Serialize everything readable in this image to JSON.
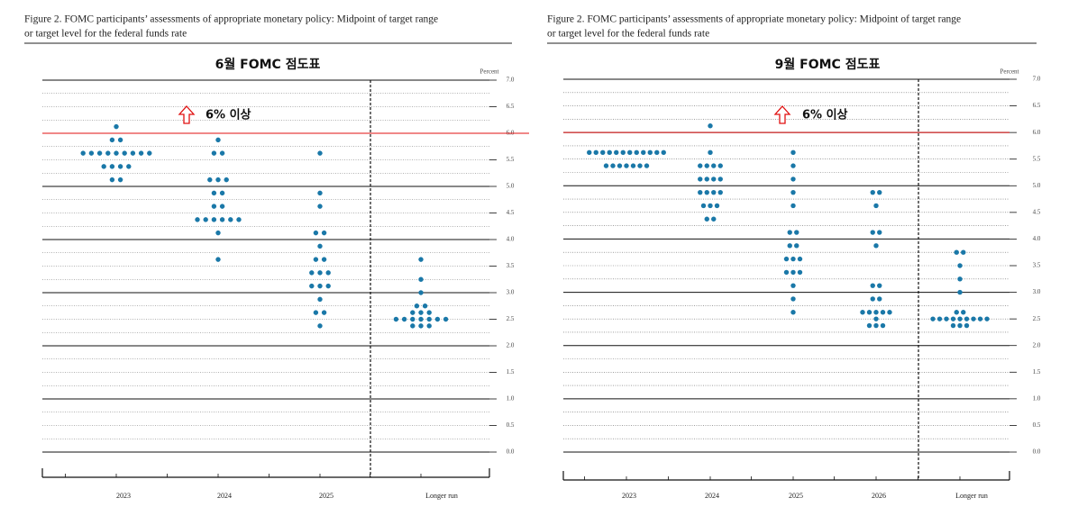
{
  "chart_data": [
    {
      "type": "dot",
      "caption": [
        "Figure 2.  FOMC participants’ assessments of appropriate monetary policy:  Midpoint of target range",
        "or target level for the federal funds rate"
      ],
      "title": "6월 FOMC 점도표",
      "ylabel": "Percent",
      "annotation": "6% 이상",
      "threshold": 6.0,
      "threshold_color": "#e01010",
      "color": "#1a78a8",
      "categories": [
        "2023",
        "2024",
        "2025",
        "Longer run"
      ],
      "dots": [
        [
          6.125,
          5.875,
          5.875,
          5.625,
          5.625,
          5.625,
          5.625,
          5.625,
          5.625,
          5.625,
          5.625,
          5.625,
          5.375,
          5.375,
          5.375,
          5.375,
          5.125,
          5.125
        ],
        [
          5.875,
          5.625,
          5.625,
          5.125,
          5.125,
          5.125,
          4.875,
          4.875,
          4.625,
          4.625,
          4.375,
          4.375,
          4.375,
          4.375,
          4.375,
          4.375,
          4.125,
          3.625
        ],
        [
          5.625,
          4.875,
          4.625,
          4.125,
          4.125,
          3.875,
          3.625,
          3.625,
          3.375,
          3.375,
          3.375,
          3.125,
          3.125,
          3.125,
          2.875,
          2.625,
          2.625,
          2.375
        ],
        [
          3.625,
          3.25,
          3.0,
          2.75,
          2.75,
          2.625,
          2.625,
          2.625,
          2.5,
          2.5,
          2.5,
          2.5,
          2.5,
          2.5,
          2.5,
          2.375,
          2.375,
          2.375
        ]
      ],
      "ylim": [
        0,
        7
      ],
      "yticks": [
        {
          "value": 0,
          "label": "0.0"
        },
        0.5,
        {
          "value": 1,
          "label": "1.0"
        },
        1.5,
        {
          "value": 2,
          "label": "2.0"
        },
        2.5,
        {
          "value": 3,
          "label": "3.0"
        },
        3.5,
        {
          "value": 4,
          "label": "4.0"
        },
        4.5,
        {
          "value": 5,
          "label": "5.0"
        },
        5.5,
        {
          "value": 6,
          "label": "6.0"
        },
        6.5,
        {
          "value": 7,
          "label": "7.0"
        }
      ],
      "minor_yticks": [
        0.25,
        0.75,
        1.25,
        1.75,
        2.25,
        2.75,
        3.25,
        3.75,
        4.25,
        4.75,
        5.25,
        5.75,
        6.25,
        6.75
      ]
    },
    {
      "type": "dot",
      "caption": [
        "Figure 2.  FOMC participants’ assessments of appropriate monetary policy:  Midpoint of target range",
        "or target level for the federal funds rate"
      ],
      "title": "9월 FOMC 점도표",
      "ylabel": "Percent",
      "annotation": "6% 이상",
      "threshold": 6.0,
      "threshold_color": "#e01010",
      "color": "#1a78a8",
      "categories": [
        "2023",
        "2024",
        "2025",
        "2026",
        "Longer run"
      ],
      "dots": [
        [
          5.625,
          5.625,
          5.625,
          5.625,
          5.625,
          5.625,
          5.625,
          5.625,
          5.625,
          5.625,
          5.625,
          5.625,
          5.375,
          5.375,
          5.375,
          5.375,
          5.375,
          5.375,
          5.375
        ],
        [
          6.125,
          5.625,
          5.375,
          5.375,
          5.375,
          5.375,
          5.125,
          5.125,
          5.125,
          5.125,
          4.875,
          4.875,
          4.875,
          4.875,
          4.625,
          4.625,
          4.625,
          4.375,
          4.375
        ],
        [
          5.625,
          5.375,
          5.125,
          4.875,
          4.625,
          4.125,
          4.125,
          3.875,
          3.875,
          3.625,
          3.625,
          3.625,
          3.375,
          3.375,
          3.375,
          3.125,
          2.875,
          2.625
        ],
        [
          4.875,
          4.875,
          4.625,
          4.125,
          4.125,
          3.875,
          3.125,
          3.125,
          2.875,
          2.875,
          2.625,
          2.625,
          2.625,
          2.625,
          2.625,
          2.5,
          2.375,
          2.375,
          2.375
        ],
        [
          3.75,
          3.75,
          3.5,
          3.25,
          3.0,
          2.625,
          2.625,
          2.5,
          2.5,
          2.5,
          2.5,
          2.5,
          2.5,
          2.5,
          2.5,
          2.5,
          2.375,
          2.375,
          2.375
        ]
      ],
      "ylim": [
        0,
        7
      ],
      "yticks": [
        {
          "value": 0,
          "label": "0.0"
        },
        0.5,
        {
          "value": 1,
          "label": "1.0"
        },
        1.5,
        {
          "value": 2,
          "label": "2.0"
        },
        2.5,
        {
          "value": 3,
          "label": "3.0"
        },
        3.5,
        {
          "value": 4,
          "label": "4.0"
        },
        4.5,
        {
          "value": 5,
          "label": "5.0"
        },
        5.5,
        {
          "value": 6,
          "label": "6.0"
        },
        6.5,
        {
          "value": 7,
          "label": "7.0"
        }
      ],
      "minor_yticks": [
        0.25,
        0.75,
        1.25,
        1.75,
        2.25,
        2.75,
        3.25,
        3.75,
        4.25,
        4.75,
        5.25,
        5.75,
        6.25,
        6.75
      ]
    }
  ]
}
